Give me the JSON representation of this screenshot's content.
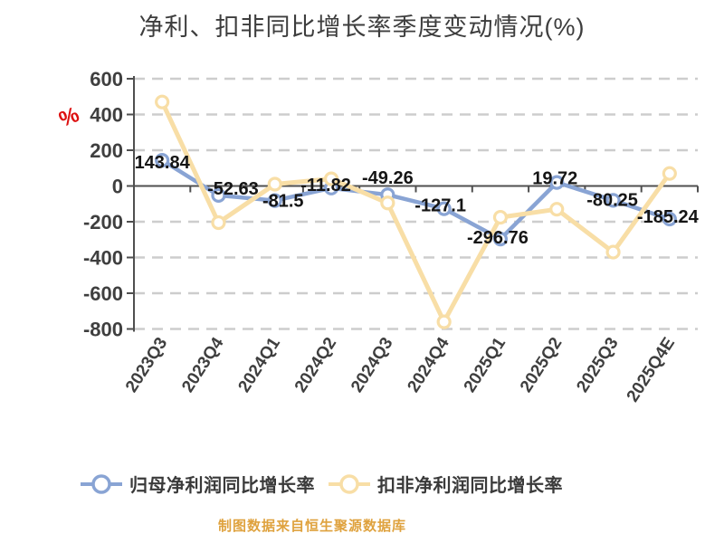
{
  "title": "净利、扣非同比增长率季度变动情况(%)",
  "y_axis": {
    "unit": "%",
    "tick_labels": [
      "600",
      "400",
      "200",
      "0",
      "-200",
      "-400",
      "-600",
      "-800"
    ],
    "tick_values": [
      600,
      400,
      200,
      0,
      -200,
      -400,
      -600,
      -800
    ]
  },
  "chart_data": {
    "type": "line",
    "title": "净利、扣非同比增长率季度变动情况(%)",
    "categories": [
      "2023Q3",
      "2023Q4",
      "2024Q1",
      "2024Q2",
      "2024Q3",
      "2024Q4",
      "2025Q1",
      "2025Q2",
      "2025Q3",
      "2025Q4E"
    ],
    "series": [
      {
        "name": "归母净利润同比增长率",
        "color": "#89a4d4",
        "values": [
          143.84,
          -52.63,
          -81.5,
          -11.82,
          -49.26,
          -127.1,
          -296.76,
          19.72,
          -80.25,
          -185.24
        ],
        "labels": [
          "143.84",
          "-52.63",
          "-81.5",
          "-11.82",
          "-49.26",
          "-127.1",
          "-296.76",
          "19.72",
          "-80.25",
          "-185.24"
        ]
      },
      {
        "name": "扣非净利润同比增长率",
        "color": "#f8dea6",
        "values": [
          470,
          -205,
          10,
          40,
          -95,
          -760,
          -175,
          -130,
          -370,
          70
        ],
        "labels": []
      }
    ],
    "ylim": [
      -800,
      600
    ],
    "ylabel": "%",
    "grid": "horizontal-dashed",
    "legend_position": "bottom"
  },
  "legend": {
    "items": [
      {
        "label": "归母净利润同比增长率",
        "color": "#89a4d4"
      },
      {
        "label": "扣非净利润同比增长率",
        "color": "#f8dea6"
      }
    ]
  },
  "caption": "制图数据来自恒生聚源数据库",
  "colors": {
    "background": "#ffffff",
    "title_text": "#3d3d3d",
    "axis": "#4f4f4f",
    "gridline": "#cdcdcd",
    "tick_text": "#3f3f3f",
    "data_label_text": "#151515",
    "unit_label": "#dd1010",
    "caption_text": "#dfa23e",
    "series_blue": "#89a4d4",
    "series_yellow": "#f8dea6"
  }
}
